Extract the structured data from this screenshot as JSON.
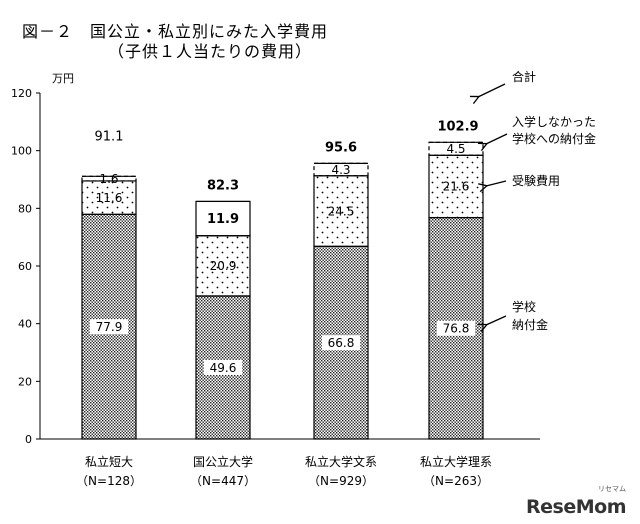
{
  "header": {
    "title": "図－２　国公立・私立別にみた入学費用",
    "subtitle": "（子供１人当たりの費用）"
  },
  "chart_data": {
    "type": "bar",
    "stacked": true,
    "unit": "万円",
    "ylim": [
      0,
      120
    ],
    "yticks": [
      0,
      20,
      40,
      60,
      80,
      100,
      120
    ],
    "categories": [
      "私立短大",
      "国公立大学",
      "私立大学文系",
      "私立大学理系"
    ],
    "category_n": [
      "（N=128）",
      "（N=447）",
      "（N=929）",
      "（N=263）"
    ],
    "series": [
      {
        "name": "学校納付金",
        "values": [
          77.9,
          49.6,
          66.8,
          76.8
        ],
        "labels": [
          "77.9",
          "49.6",
          "66.8",
          "76.8"
        ]
      },
      {
        "name": "受験費用",
        "values": [
          11.6,
          20.9,
          24.5,
          21.6
        ],
        "labels": [
          "11.6",
          "20.9",
          "24.5",
          "21.6"
        ]
      },
      {
        "name": "入学しなかった学校への納付金",
        "values": [
          1.6,
          11.9,
          4.3,
          4.5
        ],
        "labels": [
          "1.6",
          "11.9",
          "4.3",
          "4.5"
        ]
      }
    ],
    "totals": [
      91.1,
      82.3,
      95.6,
      102.9
    ],
    "total_labels": [
      "91.1",
      "82.3",
      "95.6",
      "102.9"
    ],
    "legend": {
      "total": "合計",
      "unused_line1": "入学しなかった",
      "unused_line2": "学校への納付金",
      "exam": "受験費用",
      "fee_line1": "学校",
      "fee_line2": "納付金"
    }
  },
  "watermark": {
    "brand": "ReseMom",
    "sub": "リセマム"
  }
}
